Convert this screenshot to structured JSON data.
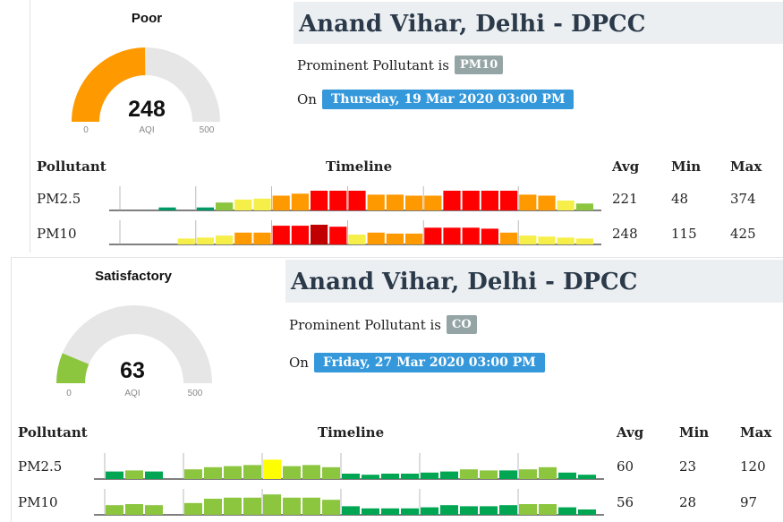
{
  "colors": {
    "good": "#009966",
    "good2": "#00a651",
    "satisfactory": "#8cc63f",
    "moderate": "#ffff00",
    "moderate2": "#f6ef4a",
    "poor": "#ff9900",
    "very_poor": "#ff0000",
    "severe": "#c00000",
    "gauge_track": "#e6e6e6"
  },
  "panels": [
    {
      "gauge": {
        "category": "Poor",
        "value": "248",
        "value_num": 248,
        "min_label": "0",
        "max_label": "500",
        "max": 500,
        "unit": "AQI",
        "color": "#ff9900"
      },
      "station": "Anand Vihar, Delhi - DPCC",
      "prominent_label": "Prominent Pollutant is",
      "prominent_value": "PM10",
      "on_label": "On",
      "date": "Thursday, 19 Mar 2020 03:00 PM",
      "table": {
        "headers": {
          "pollutant": "Pollutant",
          "timeline": "Timeline",
          "avg": "Avg",
          "min": "Min",
          "max": "Max"
        },
        "rows": [
          {
            "name": "PM2.5",
            "avg": "221",
            "min": "48",
            "max": "374",
            "bars": [
              "",
              "",
              "good",
              "",
              "good",
              "satisfactory",
              "moderate2",
              "moderate2",
              "poor",
              "poor",
              "very_poor",
              "very_poor",
              "very_poor",
              "poor",
              "poor",
              "poor",
              "poor",
              "very_poor",
              "very_poor",
              "very_poor",
              "very_poor",
              "poor",
              "poor",
              "moderate2",
              "satisfactory"
            ],
            "levels": [
              0,
              0,
              0.15,
              0,
              0.15,
              0.4,
              0.55,
              0.6,
              0.75,
              0.85,
              1.0,
              1.0,
              1.0,
              0.8,
              0.8,
              0.75,
              0.75,
              1.0,
              1.0,
              1.0,
              1.0,
              0.8,
              0.75,
              0.5,
              0.35
            ],
            "ticks": [
              0,
              4,
              8,
              12,
              16,
              21
            ]
          },
          {
            "name": "PM10",
            "avg": "248",
            "min": "115",
            "max": "425",
            "bars": [
              "",
              "",
              "",
              "moderate2",
              "moderate2",
              "moderate2",
              "poor",
              "poor",
              "very_poor",
              "very_poor",
              "severe",
              "very_poor",
              "moderate2",
              "poor",
              "poor",
              "poor",
              "very_poor",
              "very_poor",
              "very_poor",
              "very_poor",
              "poor",
              "moderate2",
              "moderate2",
              "moderate2",
              "moderate2"
            ],
            "levels": [
              0,
              0,
              0,
              0.3,
              0.35,
              0.45,
              0.6,
              0.6,
              0.95,
              0.95,
              1.0,
              0.9,
              0.5,
              0.6,
              0.55,
              0.55,
              0.85,
              0.85,
              0.85,
              0.8,
              0.6,
              0.45,
              0.4,
              0.35,
              0.3
            ],
            "ticks": [
              0,
              4,
              8,
              12,
              16,
              21
            ]
          }
        ]
      }
    },
    {
      "gauge": {
        "category": "Satisfactory",
        "value": "63",
        "value_num": 63,
        "min_label": "0",
        "max_label": "500",
        "max": 500,
        "unit": "AQI",
        "color": "#8cc63f"
      },
      "station": "Anand Vihar, Delhi - DPCC",
      "prominent_label": "Prominent Pollutant is",
      "prominent_value": "CO",
      "on_label": "On",
      "date": "Friday, 27 Mar 2020 03:00 PM",
      "table": {
        "headers": {
          "pollutant": "Pollutant",
          "timeline": "Timeline",
          "avg": "Avg",
          "min": "Min",
          "max": "Max"
        },
        "rows": [
          {
            "name": "PM2.5",
            "avg": "60",
            "min": "23",
            "max": "120",
            "bars": [
              "good2",
              "satisfactory",
              "good2",
              "",
              "satisfactory",
              "satisfactory",
              "satisfactory",
              "satisfactory",
              "moderate",
              "satisfactory",
              "satisfactory",
              "satisfactory",
              "good2",
              "good2",
              "good2",
              "good2",
              "good2",
              "good2",
              "satisfactory",
              "satisfactory",
              "good2",
              "satisfactory",
              "satisfactory",
              "good2",
              "good2"
            ],
            "levels": [
              0.35,
              0.4,
              0.35,
              0,
              0.45,
              0.55,
              0.6,
              0.65,
              0.9,
              0.6,
              0.65,
              0.55,
              0.25,
              0.2,
              0.25,
              0.25,
              0.3,
              0.35,
              0.45,
              0.4,
              0.4,
              0.45,
              0.55,
              0.3,
              0.2
            ],
            "ticks": [
              0,
              4,
              8,
              12,
              16,
              21
            ]
          },
          {
            "name": "PM10",
            "avg": "56",
            "min": "28",
            "max": "97",
            "bars": [
              "satisfactory",
              "satisfactory",
              "satisfactory",
              "",
              "satisfactory",
              "satisfactory",
              "satisfactory",
              "satisfactory",
              "satisfactory",
              "satisfactory",
              "satisfactory",
              "satisfactory",
              "good2",
              "good2",
              "good2",
              "good2",
              "good2",
              "good2",
              "good2",
              "good2",
              "good2",
              "satisfactory",
              "satisfactory",
              "good2",
              "good2"
            ],
            "levels": [
              0.45,
              0.5,
              0.45,
              0,
              0.55,
              0.75,
              0.8,
              0.8,
              0.95,
              0.8,
              0.8,
              0.7,
              0.4,
              0.3,
              0.3,
              0.3,
              0.35,
              0.45,
              0.4,
              0.4,
              0.45,
              0.5,
              0.5,
              0.35,
              0.25
            ],
            "ticks": [
              0,
              4,
              8,
              12,
              16,
              21
            ]
          }
        ]
      }
    }
  ]
}
